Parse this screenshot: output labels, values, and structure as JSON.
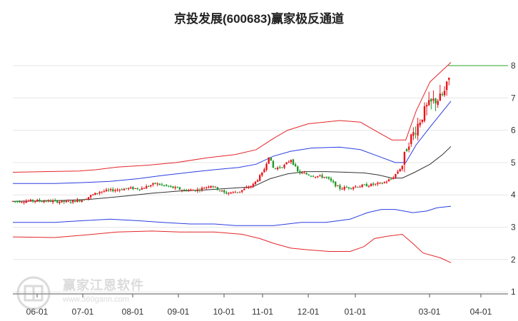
{
  "chart_data": {
    "type": "candlestick-channel",
    "title": "京投发展(600683)赢家极反通道",
    "x_tick_labels": [
      "06-01",
      "07-01",
      "08-01",
      "09-01",
      "10-01",
      "11-01",
      "12-01",
      "01-01",
      "03-01",
      "04-01"
    ],
    "y_tick_labels": [
      "1",
      "2",
      "3",
      "4",
      "5",
      "6",
      "7",
      "8"
    ],
    "ylim": [
      1,
      8.3
    ],
    "grid": "horizontal",
    "last_close_marker": 8.0,
    "colors": {
      "up": "#e8141b",
      "down": "#1f9a2a",
      "outer_band": "#e4262a",
      "inner_band": "#2a3ee0",
      "mid_line": "#333333",
      "marker": "#2aa02a",
      "grid": "#e6e6e6"
    },
    "series": {
      "outer_upper": [
        [
          0,
          4.7
        ],
        [
          45,
          4.72
        ],
        [
          95,
          4.74
        ],
        [
          120,
          4.78
        ],
        [
          150,
          4.86
        ],
        [
          195,
          4.92
        ],
        [
          235,
          5.0
        ],
        [
          280,
          5.15
        ],
        [
          320,
          5.25
        ],
        [
          350,
          5.4
        ],
        [
          375,
          5.75
        ],
        [
          395,
          6.0
        ],
        [
          425,
          6.2
        ],
        [
          470,
          6.3
        ],
        [
          500,
          6.25
        ],
        [
          520,
          6.0
        ],
        [
          545,
          5.7
        ],
        [
          565,
          5.7
        ],
        [
          580,
          6.6
        ],
        [
          600,
          7.5
        ],
        [
          620,
          7.9
        ],
        [
          630,
          8.1
        ]
      ],
      "inner_upper": [
        [
          0,
          4.35
        ],
        [
          60,
          4.35
        ],
        [
          100,
          4.38
        ],
        [
          140,
          4.42
        ],
        [
          180,
          4.5
        ],
        [
          215,
          4.6
        ],
        [
          255,
          4.7
        ],
        [
          290,
          4.78
        ],
        [
          325,
          4.85
        ],
        [
          350,
          4.95
        ],
        [
          375,
          5.2
        ],
        [
          400,
          5.35
        ],
        [
          430,
          5.45
        ],
        [
          470,
          5.48
        ],
        [
          500,
          5.4
        ],
        [
          525,
          5.2
        ],
        [
          550,
          5.0
        ],
        [
          565,
          5.0
        ],
        [
          580,
          5.55
        ],
        [
          600,
          6.1
        ],
        [
          615,
          6.5
        ],
        [
          630,
          6.9
        ]
      ],
      "mid": [
        [
          0,
          3.8
        ],
        [
          60,
          3.82
        ],
        [
          110,
          3.86
        ],
        [
          160,
          3.96
        ],
        [
          200,
          4.05
        ],
        [
          240,
          4.12
        ],
        [
          275,
          4.15
        ],
        [
          310,
          4.2
        ],
        [
          345,
          4.25
        ],
        [
          370,
          4.5
        ],
        [
          395,
          4.65
        ],
        [
          420,
          4.72
        ],
        [
          450,
          4.72
        ],
        [
          480,
          4.7
        ],
        [
          505,
          4.68
        ],
        [
          525,
          4.62
        ],
        [
          545,
          4.52
        ],
        [
          560,
          4.52
        ],
        [
          578,
          4.7
        ],
        [
          600,
          4.95
        ],
        [
          618,
          5.25
        ],
        [
          630,
          5.5
        ]
      ],
      "inner_lower": [
        [
          0,
          3.15
        ],
        [
          60,
          3.15
        ],
        [
          100,
          3.2
        ],
        [
          140,
          3.25
        ],
        [
          180,
          3.2
        ],
        [
          215,
          3.15
        ],
        [
          255,
          3.1
        ],
        [
          290,
          3.1
        ],
        [
          320,
          3.05
        ],
        [
          350,
          3.05
        ],
        [
          375,
          3.05
        ],
        [
          395,
          3.1
        ],
        [
          415,
          3.15
        ],
        [
          450,
          3.15
        ],
        [
          485,
          3.25
        ],
        [
          510,
          3.45
        ],
        [
          530,
          3.55
        ],
        [
          550,
          3.55
        ],
        [
          575,
          3.45
        ],
        [
          595,
          3.5
        ],
        [
          610,
          3.6
        ],
        [
          630,
          3.65
        ]
      ],
      "outer_lower": [
        [
          0,
          2.7
        ],
        [
          60,
          2.68
        ],
        [
          100,
          2.75
        ],
        [
          150,
          2.85
        ],
        [
          200,
          2.88
        ],
        [
          240,
          2.85
        ],
        [
          290,
          2.85
        ],
        [
          330,
          2.78
        ],
        [
          355,
          2.65
        ],
        [
          375,
          2.5
        ],
        [
          400,
          2.35
        ],
        [
          425,
          2.3
        ],
        [
          455,
          2.25
        ],
        [
          485,
          2.25
        ],
        [
          505,
          2.4
        ],
        [
          520,
          2.65
        ],
        [
          538,
          2.72
        ],
        [
          560,
          2.78
        ],
        [
          575,
          2.5
        ],
        [
          590,
          2.2
        ],
        [
          615,
          2.05
        ],
        [
          630,
          1.9
        ]
      ]
    },
    "price_path": [
      [
        0,
        3.8
      ],
      [
        40,
        3.82
      ],
      [
        80,
        3.78
      ],
      [
        100,
        3.85
      ],
      [
        125,
        4.1
      ],
      [
        145,
        4.15
      ],
      [
        165,
        4.2
      ],
      [
        185,
        4.2
      ],
      [
        205,
        4.35
      ],
      [
        225,
        4.25
      ],
      [
        245,
        4.15
      ],
      [
        265,
        4.15
      ],
      [
        285,
        4.3
      ],
      [
        305,
        4.05
      ],
      [
        325,
        4.1
      ],
      [
        345,
        4.3
      ],
      [
        360,
        4.7
      ],
      [
        368,
        5.2
      ],
      [
        375,
        4.8
      ],
      [
        390,
        4.9
      ],
      [
        400,
        5.1
      ],
      [
        410,
        4.7
      ],
      [
        430,
        4.6
      ],
      [
        450,
        4.55
      ],
      [
        470,
        4.2
      ],
      [
        490,
        4.25
      ],
      [
        510,
        4.3
      ],
      [
        530,
        4.35
      ],
      [
        545,
        4.5
      ],
      [
        560,
        4.9
      ],
      [
        568,
        5.6
      ],
      [
        576,
        5.9
      ],
      [
        585,
        6.3
      ],
      [
        595,
        6.7
      ],
      [
        605,
        6.9
      ],
      [
        615,
        7.0
      ],
      [
        622,
        7.2
      ],
      [
        630,
        7.8
      ]
    ]
  },
  "watermark": {
    "name": "赢家江恩软件",
    "url": "www.360gann.com"
  }
}
